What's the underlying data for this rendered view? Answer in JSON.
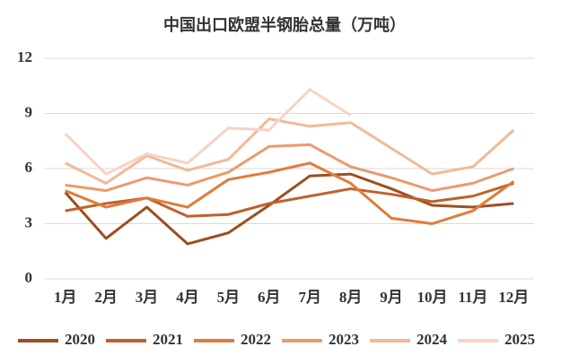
{
  "chart_data": {
    "type": "line",
    "title": "中国出口欧盟半钢胎总量（万吨）",
    "categories": [
      "1月",
      "2月",
      "3月",
      "4月",
      "5月",
      "6月",
      "7月",
      "8月",
      "9月",
      "10月",
      "11月",
      "12月"
    ],
    "series": [
      {
        "name": "2020",
        "color": "#9c4f1f",
        "values": [
          4.7,
          2.2,
          3.9,
          1.9,
          2.5,
          4.0,
          5.6,
          5.7,
          4.9,
          4.0,
          3.9,
          4.1
        ]
      },
      {
        "name": "2021",
        "color": "#c0602a",
        "values": [
          3.7,
          4.1,
          4.4,
          3.4,
          3.5,
          4.1,
          4.5,
          4.9,
          4.6,
          4.2,
          4.5,
          5.2
        ]
      },
      {
        "name": "2022",
        "color": "#e07c3a",
        "values": [
          4.8,
          3.9,
          4.4,
          3.9,
          5.4,
          5.8,
          6.3,
          5.2,
          3.3,
          3.0,
          3.7,
          5.3
        ]
      },
      {
        "name": "2023",
        "color": "#eb9a6c",
        "values": [
          5.1,
          4.8,
          5.5,
          5.1,
          5.8,
          7.2,
          7.3,
          6.1,
          5.5,
          4.8,
          5.2,
          6.0
        ]
      },
      {
        "name": "2024",
        "color": "#f2b99a",
        "values": [
          6.3,
          5.2,
          6.7,
          5.9,
          6.5,
          8.7,
          8.3,
          8.5,
          7.1,
          5.7,
          6.1,
          8.1
        ]
      },
      {
        "name": "2025",
        "color": "#f7d3c3",
        "values": [
          7.9,
          5.7,
          6.8,
          6.3,
          8.2,
          8.1,
          10.3,
          8.9,
          null,
          null,
          null,
          null
        ]
      }
    ],
    "ylim": [
      0,
      12
    ],
    "yticks": [
      0,
      3,
      6,
      9,
      12
    ],
    "grid": true,
    "legend": "bottom"
  }
}
